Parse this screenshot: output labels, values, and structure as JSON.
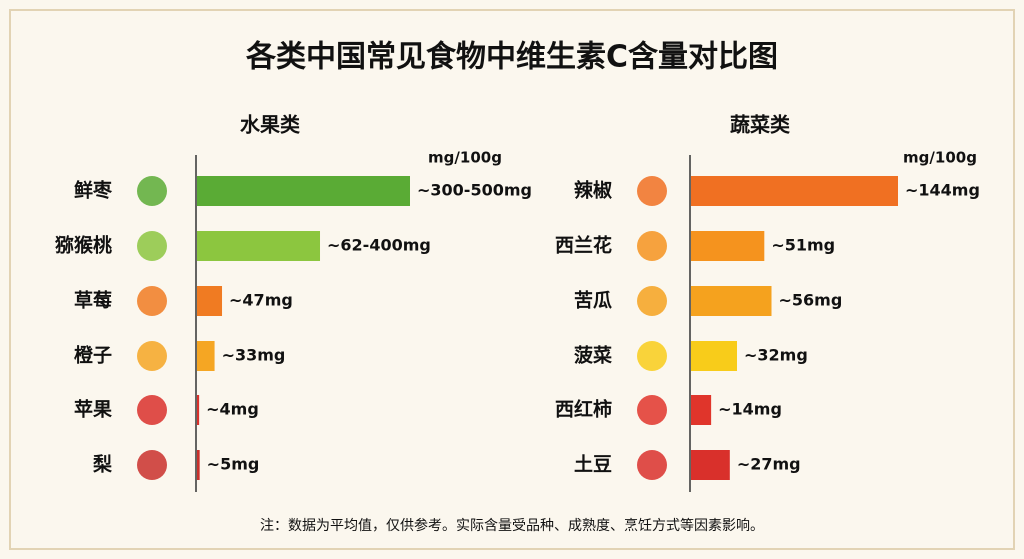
{
  "title": "各类中国常见食物中维生素C含量对比图",
  "note": "注：数据为平均值，仅供参考。实际含量受品种、成熟度、烹饪方式等因素影响。",
  "chart_data": [
    {
      "type": "bar",
      "orientation": "horizontal",
      "title": "水果类",
      "unit": "mg/100g",
      "categories": [
        "鲜枣",
        "猕猴桃",
        "草莓",
        "橙子",
        "苹果",
        "梨"
      ],
      "values": [
        400,
        231,
        47,
        33,
        4,
        5
      ],
      "value_labels": [
        "~300-500mg",
        "~62-400mg",
        "~47mg",
        "~33mg",
        "~4mg",
        "~5mg"
      ],
      "colors": [
        "#5aab35",
        "#8cc63f",
        "#f07b22",
        "#f5a623",
        "#d9302b",
        "#c9302b"
      ]
    },
    {
      "type": "bar",
      "orientation": "horizontal",
      "title": "蔬菜类",
      "unit": "mg/100g",
      "categories": [
        "辣椒",
        "西兰花",
        "苦瓜",
        "菠菜",
        "西红柿",
        "土豆"
      ],
      "values": [
        144,
        51,
        56,
        32,
        14,
        27
      ],
      "value_labels": [
        "~144mg",
        "~51mg",
        "~56mg",
        "~32mg",
        "~14mg",
        "~27mg"
      ],
      "colors": [
        "#f07022",
        "#f5931e",
        "#f5a21e",
        "#f8cc1a",
        "#e0352b",
        "#d9302b"
      ]
    }
  ]
}
